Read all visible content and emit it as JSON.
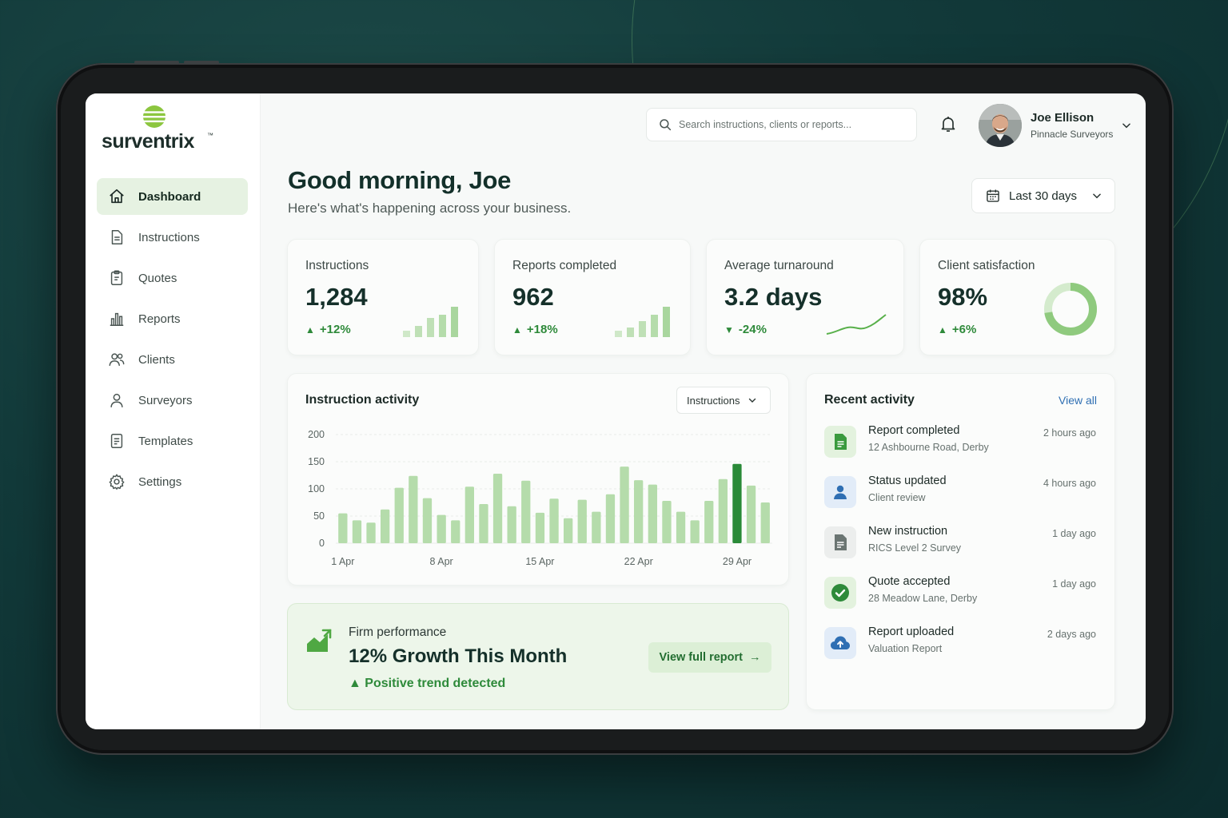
{
  "brand": {
    "name": "surventrix",
    "trademark": "™"
  },
  "sidebar": {
    "items": [
      {
        "label": "Dashboard",
        "icon": "home-icon",
        "active": true
      },
      {
        "label": "Instructions",
        "icon": "document-icon"
      },
      {
        "label": "Quotes",
        "icon": "clipboard-icon"
      },
      {
        "label": "Reports",
        "icon": "bar-chart-icon"
      },
      {
        "label": "Clients",
        "icon": "users-icon"
      },
      {
        "label": "Surveyors",
        "icon": "user-icon"
      },
      {
        "label": "Templates",
        "icon": "template-icon"
      },
      {
        "label": "Settings",
        "icon": "gear-icon"
      }
    ]
  },
  "header": {
    "search_placeholder": "Search instructions, clients or reports...",
    "user": {
      "name": "Joe Ellison",
      "company": "Pinnacle Surveyors"
    }
  },
  "greeting": {
    "title": "Good morning, Joe",
    "subtitle": "Here's what's happening across your business."
  },
  "date_range": {
    "label": "Last 30 days"
  },
  "stats": [
    {
      "title": "Instructions",
      "value": "1,284",
      "delta": "+12%",
      "direction": "up"
    },
    {
      "title": "Reports completed",
      "value": "962",
      "delta": "+18%",
      "direction": "up"
    },
    {
      "title": "Average turnaround",
      "value": "3.2 days",
      "delta": "-24%",
      "direction": "down"
    },
    {
      "title": "Client satisfaction",
      "value": "98%",
      "delta": "+6%",
      "direction": "up",
      "gauge": 0.98
    }
  ],
  "instruction_activity": {
    "title": "Instruction activity",
    "select_label": "Instructions"
  },
  "chart_data": {
    "type": "bar",
    "ylim": [
      0,
      200
    ],
    "yticks": [
      0,
      50,
      100,
      150,
      200
    ],
    "xtick_labels": [
      "1 Apr",
      "8 Apr",
      "15 Apr",
      "22 Apr",
      "29 Apr"
    ],
    "xtick_indices": [
      0,
      7,
      14,
      21,
      28
    ],
    "values": [
      55,
      42,
      38,
      62,
      102,
      124,
      83,
      52,
      42,
      104,
      72,
      128,
      68,
      115,
      56,
      82,
      46,
      80,
      58,
      90,
      141,
      116,
      108,
      78,
      58,
      42,
      78,
      118,
      146,
      106,
      75
    ],
    "highlight_index": 28,
    "colors": {
      "bar": "#b5dcab",
      "highlight": "#2a8a38"
    }
  },
  "performance": {
    "label": "Firm performance",
    "title": "12% Growth This Month",
    "trend": "Positive trend detected",
    "button": "View full report"
  },
  "recent_activity": {
    "title": "Recent activity",
    "view_all": "View all",
    "items": [
      {
        "title": "Report completed",
        "subtitle": "12 Ashbourne Road, Derby",
        "time": "2 hours ago",
        "icon": "report-doc-icon"
      },
      {
        "title": "Status updated",
        "subtitle": "Client review",
        "time": "4 hours ago",
        "icon": "person-icon"
      },
      {
        "title": "New instruction",
        "subtitle": "RICS Level 2 Survey",
        "time": "1 day ago",
        "icon": "doc-icon"
      },
      {
        "title": "Quote accepted",
        "subtitle": "28 Meadow Lane, Derby",
        "time": "1 day ago",
        "icon": "check-icon"
      },
      {
        "title": "Report uploaded",
        "subtitle": "Valuation Report",
        "time": "2 days ago",
        "icon": "cloud-upload-icon"
      }
    ]
  },
  "colors": {
    "accent": "#2e8a3a",
    "brand_dark": "#13302a",
    "link": "#2f6fb3"
  }
}
